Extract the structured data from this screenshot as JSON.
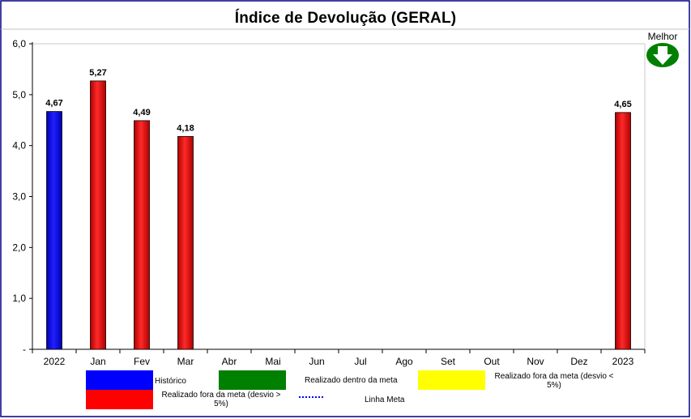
{
  "title": "Índice de Devolução (GERAL)",
  "melhor": {
    "label": "Melhor",
    "icon": "arrow-down-icon",
    "color": "#008000"
  },
  "chart_data": {
    "type": "bar",
    "title": "Índice de Devolução (GERAL)",
    "categories": [
      "2022",
      "Jan",
      "Fev",
      "Mar",
      "Abr",
      "Mai",
      "Jun",
      "Jul",
      "Ago",
      "Set",
      "Out",
      "Nov",
      "Dez",
      "2023"
    ],
    "values": [
      4.67,
      5.27,
      4.49,
      4.18,
      null,
      null,
      null,
      null,
      null,
      null,
      null,
      null,
      null,
      4.65
    ],
    "value_labels": [
      "4,67",
      "5,27",
      "4,49",
      "4,18",
      "",
      "",
      "",
      "",
      "",
      "",
      "",
      "",
      "",
      "4,65"
    ],
    "bar_colors": [
      "#0000ff",
      "#ff0000",
      "#ff0000",
      "#ff0000",
      null,
      null,
      null,
      null,
      null,
      null,
      null,
      null,
      null,
      "#ff0000"
    ],
    "ylim": [
      0,
      6
    ],
    "yticks": [
      0,
      1,
      2,
      3,
      4,
      5,
      6
    ],
    "ytick_labels": [
      "-",
      "1,0",
      "2,0",
      "3,0",
      "4,0",
      "5,0",
      "6,0"
    ],
    "xlabel": "",
    "ylabel": "",
    "grid": false,
    "legend_position": "bottom"
  },
  "legend": [
    {
      "label": "Histórico",
      "color": "#0000ff",
      "kind": "box"
    },
    {
      "label": "Realizado dentro da meta",
      "color": "#008000",
      "kind": "box"
    },
    {
      "label": "Realizado fora da meta (desvio < 5%)",
      "color": "#ffff00",
      "kind": "box"
    },
    {
      "label": "Realizado fora da meta (desvio > 5%)",
      "color": "#ff0000",
      "kind": "box"
    },
    {
      "label": "Linha Meta",
      "color": "#0000ff",
      "kind": "dotted-line"
    }
  ]
}
